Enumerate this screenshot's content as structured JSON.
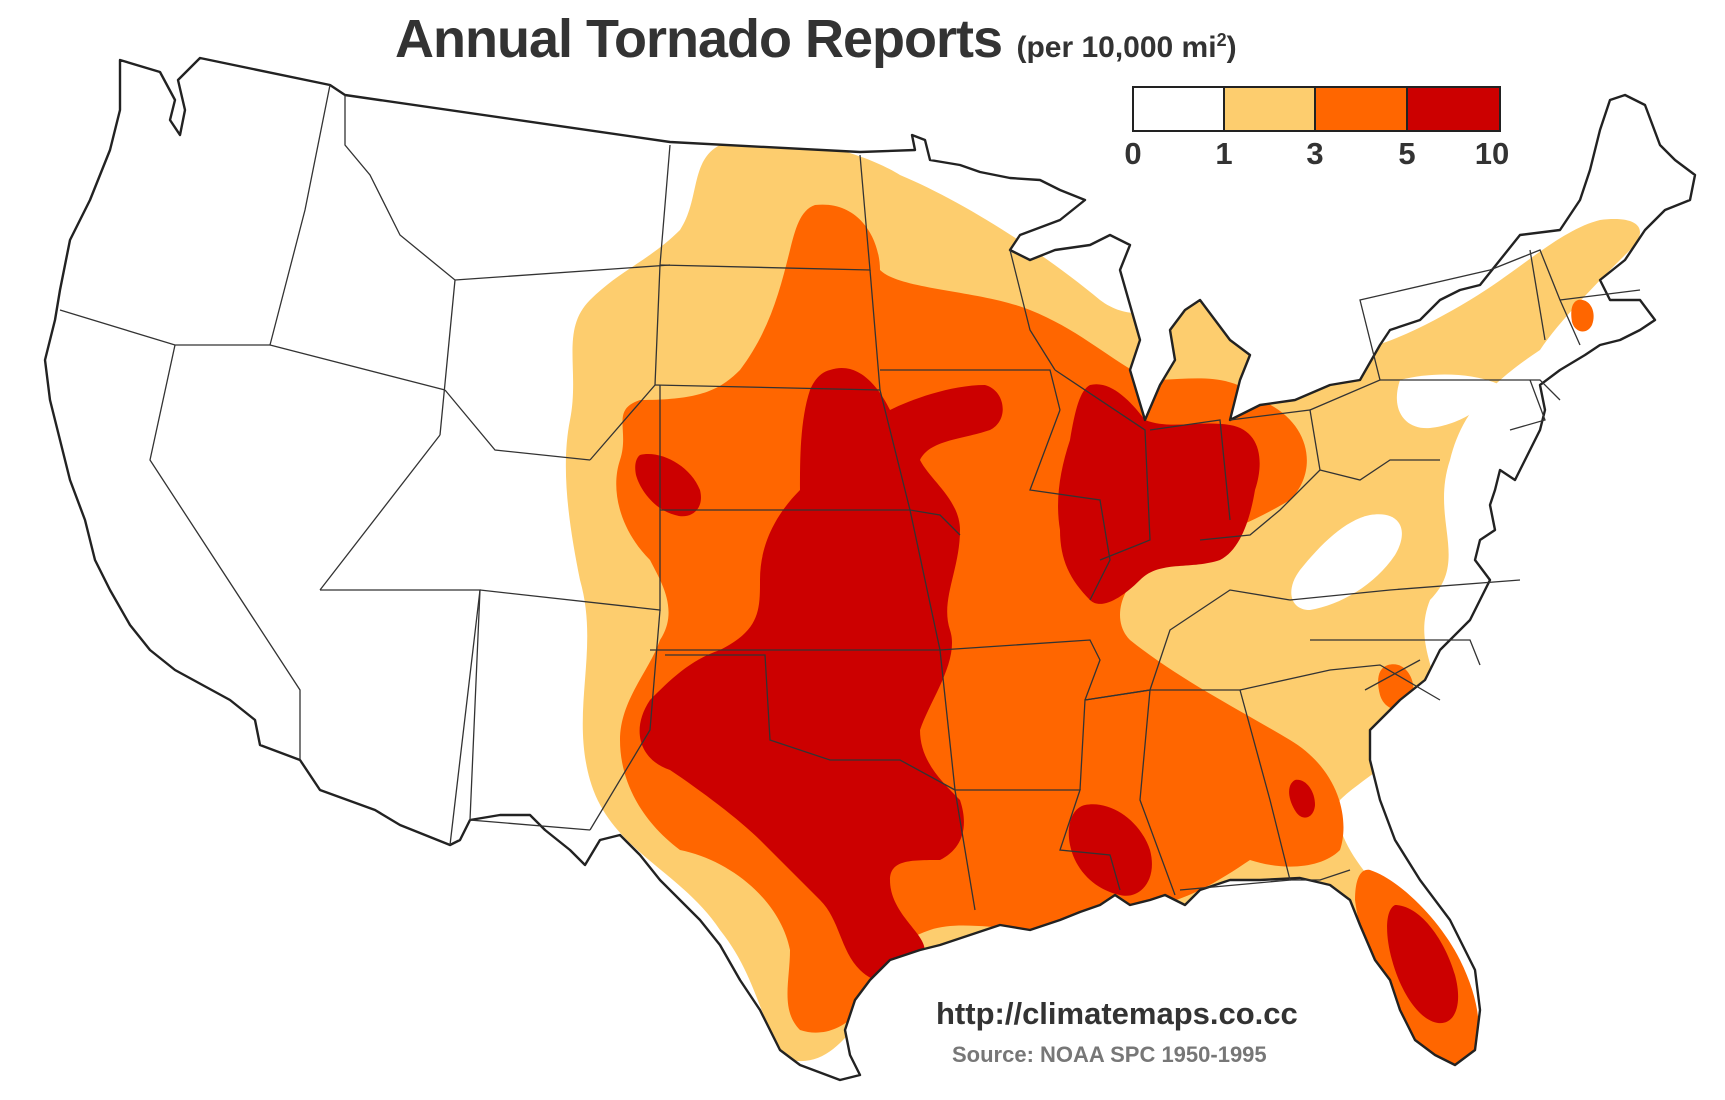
{
  "title": "Annual Tornado Reports",
  "unit_prefix": "(per 10,000 mi",
  "unit_exp": "2",
  "unit_suffix": ")",
  "legend": {
    "ticks": [
      "0",
      "1",
      "3",
      "5",
      "10"
    ],
    "colors": [
      "#ffffff",
      "#fdcd6e",
      "#ff6600",
      "#cc0000"
    ]
  },
  "map_colors": {
    "water": "#ffffff",
    "outline": "#222222",
    "state_lines": "#333333"
  },
  "credit": {
    "url": "http://climatemaps.co.cc",
    "source": "Source: NOAA SPC 1950-1995"
  }
}
